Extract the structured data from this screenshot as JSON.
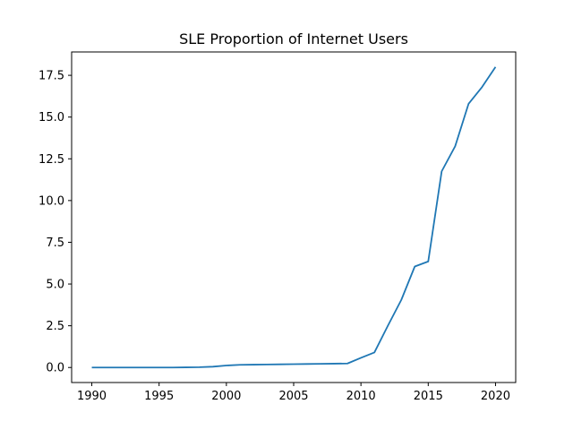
{
  "chart_data": {
    "type": "line",
    "title": "SLE Proportion of Internet Users",
    "xlabel": "",
    "ylabel": "",
    "xlim": [
      1988.5,
      2021.5
    ],
    "ylim": [
      -0.9,
      18.9
    ],
    "x_ticks": [
      1990,
      1995,
      2000,
      2005,
      2010,
      2015,
      2020
    ],
    "x_tick_labels": [
      "1990",
      "1995",
      "2000",
      "2005",
      "2010",
      "2015",
      "2020"
    ],
    "y_ticks": [
      0,
      2.5,
      5,
      7.5,
      10,
      12.5,
      15,
      17.5
    ],
    "y_tick_labels": [
      "0.0",
      "2.5",
      "5.0",
      "7.5",
      "10.0",
      "12.5",
      "15.0",
      "17.5"
    ],
    "grid": false,
    "series": [
      {
        "color": "#1f77b4",
        "x": [
          1990,
          1991,
          1992,
          1993,
          1994,
          1995,
          1996,
          1997,
          1998,
          1999,
          2000,
          2001,
          2002,
          2003,
          2004,
          2005,
          2006,
          2007,
          2008,
          2009,
          2010,
          2011,
          2012,
          2013,
          2014,
          2015,
          2016,
          2017,
          2018,
          2019,
          2020
        ],
        "y": [
          0,
          0,
          0,
          0,
          0,
          0,
          0,
          0.01,
          0.02,
          0.05,
          0.12,
          0.16,
          0.17,
          0.18,
          0.19,
          0.2,
          0.21,
          0.22,
          0.23,
          0.24,
          0.58,
          0.9,
          2.5,
          4.05,
          6.05,
          6.35,
          11.75,
          13.25,
          15.8,
          16.8,
          18.0
        ]
      }
    ]
  }
}
